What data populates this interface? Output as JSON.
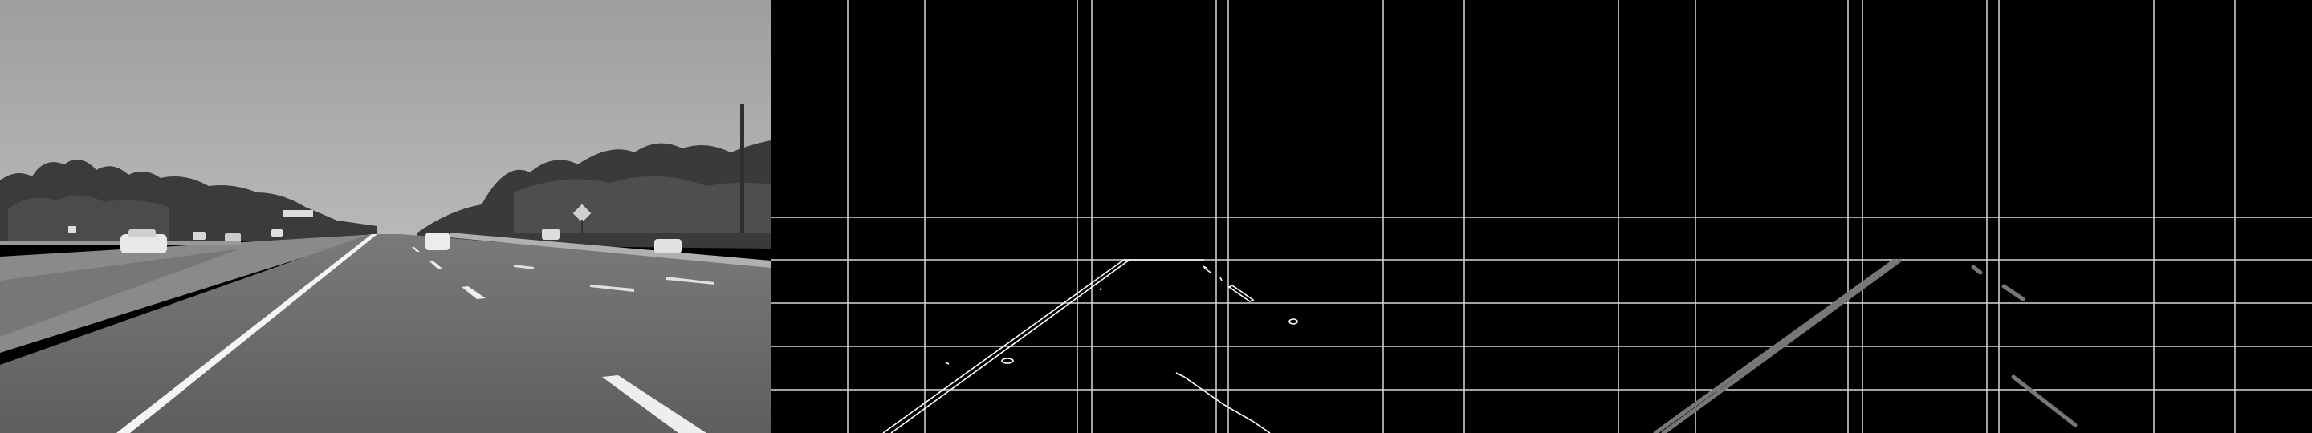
{
  "panels": [
    {
      "id": "original",
      "kind": "grayscale road scene"
    },
    {
      "id": "edges",
      "kind": "canny edges with region grid"
    },
    {
      "id": "lines",
      "kind": "hough lines with region grid"
    }
  ],
  "colors": {
    "background": "#000000",
    "grid": "#d8d8d8",
    "edge": "#ffffff",
    "hough": "#777777",
    "sky": "#a6a6a6",
    "road": "#6a6a6a",
    "lane_marking": "#f4f4f4"
  },
  "icon_names": [
    "diamond-road-sign-icon",
    "car-icon",
    "utility-pole-icon"
  ]
}
